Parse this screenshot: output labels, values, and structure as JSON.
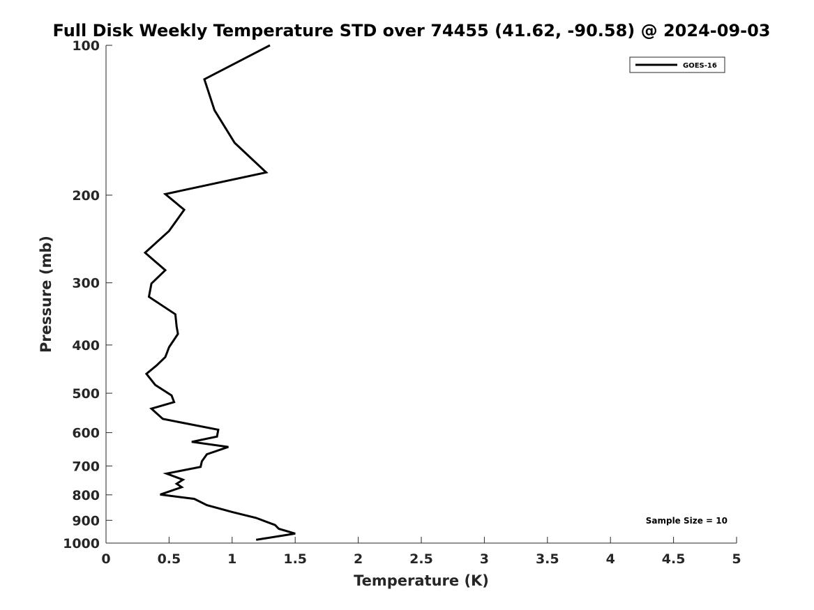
{
  "chart_data": {
    "type": "line",
    "title": "Full Disk Weekly Temperature STD over 74455 (41.62, -90.58) @ 2024-09-03",
    "xlabel": "Temperature (K)",
    "ylabel": "Pressure (mb)",
    "xlim": [
      0,
      5
    ],
    "ylim": [
      100,
      1000
    ],
    "y_scale": "log",
    "y_reversed": true,
    "x_ticks": [
      0,
      0.5,
      1,
      1.5,
      2,
      2.5,
      3,
      3.5,
      4,
      4.5,
      5
    ],
    "x_tick_labels": [
      "0",
      "0.5",
      "1",
      "1.5",
      "2",
      "2.5",
      "3",
      "3.5",
      "4",
      "4.5",
      "5"
    ],
    "y_ticks": [
      100,
      200,
      300,
      400,
      500,
      600,
      700,
      800,
      900,
      1000
    ],
    "y_tick_labels": [
      "100",
      "200",
      "300",
      "400",
      "500",
      "600",
      "700",
      "800",
      "900",
      "1000"
    ],
    "grid": false,
    "legend_position": "top-right",
    "annotation": "Sample Size = 10",
    "series": [
      {
        "name": "GOES-16",
        "color": "#000000",
        "points": [
          [
            1.3,
            100
          ],
          [
            0.78,
            117
          ],
          [
            0.86,
            135
          ],
          [
            1.02,
            157
          ],
          [
            1.27,
            180
          ],
          [
            0.47,
            199
          ],
          [
            0.62,
            214
          ],
          [
            0.5,
            236
          ],
          [
            0.31,
            261
          ],
          [
            0.47,
            283
          ],
          [
            0.36,
            301
          ],
          [
            0.34,
            320
          ],
          [
            0.55,
            347
          ],
          [
            0.56,
            367
          ],
          [
            0.57,
            380
          ],
          [
            0.5,
            404
          ],
          [
            0.47,
            423
          ],
          [
            0.4,
            440
          ],
          [
            0.32,
            457
          ],
          [
            0.39,
            481
          ],
          [
            0.52,
            505
          ],
          [
            0.54,
            521
          ],
          [
            0.36,
            537
          ],
          [
            0.45,
            563
          ],
          [
            0.89,
            592
          ],
          [
            0.88,
            611
          ],
          [
            0.68,
            626
          ],
          [
            0.97,
            641
          ],
          [
            0.8,
            663
          ],
          [
            0.76,
            685
          ],
          [
            0.75,
            703
          ],
          [
            0.48,
            725
          ],
          [
            0.61,
            746
          ],
          [
            0.56,
            760
          ],
          [
            0.6,
            772
          ],
          [
            0.43,
            799
          ],
          [
            0.7,
            815
          ],
          [
            0.8,
            839
          ],
          [
            1.0,
            866
          ],
          [
            1.19,
            890
          ],
          [
            1.34,
            920
          ],
          [
            1.37,
            936
          ],
          [
            1.5,
            957
          ],
          [
            1.19,
            985
          ]
        ]
      }
    ]
  }
}
